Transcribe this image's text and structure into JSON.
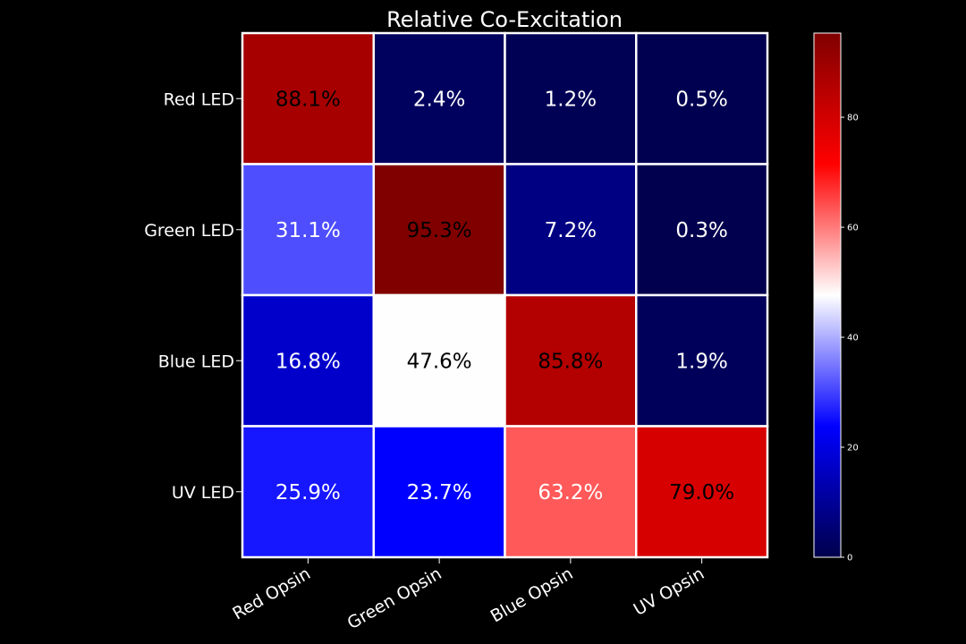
{
  "chart_data": {
    "type": "heatmap",
    "title": "Relative Co-Excitation",
    "xlabel": "",
    "ylabel": "",
    "rows": [
      "Red LED",
      "Green LED",
      "Blue LED",
      "UV LED"
    ],
    "columns": [
      "Red Opsin",
      "Green Opsin",
      "Blue Opsin",
      "UV Opsin"
    ],
    "values": [
      [
        88.1,
        2.4,
        1.2,
        0.5
      ],
      [
        31.1,
        95.3,
        7.2,
        0.3
      ],
      [
        16.8,
        47.6,
        85.8,
        1.9
      ],
      [
        25.9,
        23.7,
        63.2,
        79.0
      ]
    ],
    "labels": [
      [
        "88.1%",
        "2.4%",
        "1.2%",
        "0.5%"
      ],
      [
        "31.1%",
        "95.3%",
        "7.2%",
        "0.3%"
      ],
      [
        "16.8%",
        "47.6%",
        "85.8%",
        "1.9%"
      ],
      [
        "25.9%",
        "23.7%",
        "63.2%",
        "79.0%"
      ]
    ],
    "colormap": "seismic",
    "color_range": [
      0,
      95.3
    ],
    "colorbar": {
      "ticks": [
        0,
        20,
        40,
        60,
        80
      ],
      "tick_labels": [
        "0",
        "20",
        "40",
        "60",
        "80"
      ],
      "placement": "right"
    },
    "grid": false,
    "cell_border_color": "#ffffff",
    "background": "#000000",
    "foreground": "#ffffff"
  }
}
